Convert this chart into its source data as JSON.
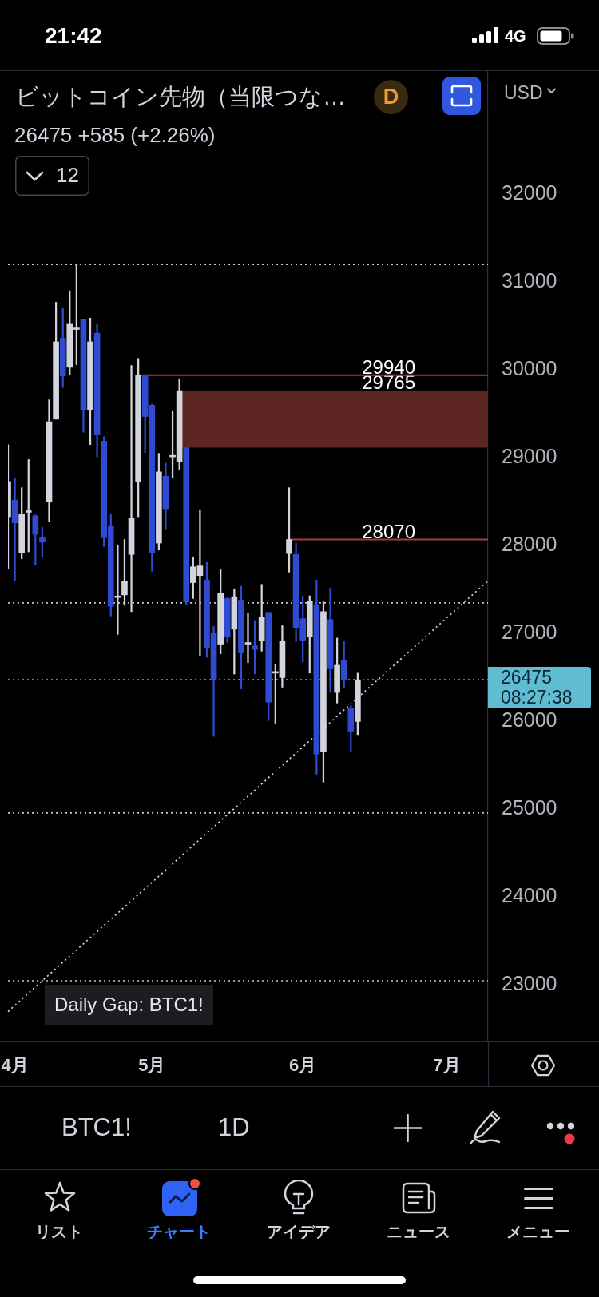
{
  "chart_data": {
    "type": "candlestick",
    "title": "ビットコイン先物（当限つな…",
    "subtitle": "26475 +585 (+2.26%)",
    "annotations": [
      "21:42",
      "4G",
      "D",
      "USD",
      "12",
      "08:27:38",
      "Daily Gap: BTC1!",
      "BTC1!",
      "1D",
      "リスト",
      "チャート",
      "アイデア",
      "ニュース",
      "メニュー"
    ],
    "categories": [
      null,
      "4月",
      null,
      null,
      null,
      null,
      null,
      null,
      null,
      null,
      null,
      null,
      null,
      null,
      null,
      null,
      null,
      null,
      null,
      null,
      null,
      "5月",
      null,
      null,
      null,
      null,
      null,
      null,
      null,
      null,
      null,
      null,
      null,
      null,
      null,
      null,
      null,
      null,
      null,
      null,
      null,
      null,
      null,
      "6月",
      null,
      null,
      null,
      null,
      null,
      null,
      null,
      null,
      null,
      null,
      null,
      null,
      null,
      null,
      null,
      null,
      null,
      null,
      null,
      null,
      "7月",
      null,
      null,
      null,
      null,
      null,
      null
    ],
    "ohlc": [
      [
        28330,
        29150,
        27740,
        28730
      ],
      [
        28520,
        28770,
        27600,
        28260
      ],
      [
        27920,
        28660,
        27850,
        28360
      ],
      [
        28380,
        28980,
        27930,
        28380
      ],
      [
        28340,
        28350,
        27780,
        28130
      ],
      [
        28100,
        28210,
        27870,
        28040
      ],
      [
        28500,
        29660,
        28270,
        29410
      ],
      [
        29440,
        30770,
        29440,
        30320
      ],
      [
        30360,
        30700,
        29800,
        29930
      ],
      [
        30030,
        30900,
        29950,
        30520
      ],
      [
        30460,
        31190,
        30060,
        30460
      ],
      [
        30580,
        30580,
        29290,
        29550
      ],
      [
        29550,
        30590,
        29150,
        30320
      ],
      [
        30420,
        30520,
        29010,
        29260
      ],
      [
        29190,
        29240,
        27990,
        28090
      ],
      [
        28230,
        28360,
        27200,
        27310
      ],
      [
        27410,
        28010,
        26990,
        27410
      ],
      [
        27440,
        28070,
        27320,
        27600
      ],
      [
        27900,
        30050,
        27250,
        28310
      ],
      [
        28730,
        30130,
        28330,
        29940
      ],
      [
        29930,
        29940,
        29060,
        29470
      ],
      [
        29600,
        29610,
        27710,
        27920
      ],
      [
        28030,
        29050,
        27950,
        28840
      ],
      [
        28790,
        28940,
        28190,
        28420
      ],
      [
        29010,
        29530,
        28770,
        29010
      ],
      [
        28950,
        29900,
        28860,
        29765
      ],
      [
        29115,
        29115,
        27330,
        27360
      ],
      [
        27580,
        27870,
        27400,
        27760
      ],
      [
        27660,
        28410,
        26750,
        27770
      ],
      [
        27610,
        27810,
        26730,
        26840
      ],
      [
        27000,
        27080,
        25830,
        26480
      ],
      [
        26880,
        27730,
        26770,
        27460
      ],
      [
        27400,
        27410,
        26900,
        26960
      ],
      [
        27050,
        27510,
        26540,
        27420
      ],
      [
        27380,
        27540,
        26370,
        26780
      ],
      [
        26880,
        27230,
        26670,
        26880
      ],
      [
        26860,
        27150,
        26540,
        26820
      ],
      [
        26920,
        27560,
        26800,
        27190
      ],
      [
        27240,
        27240,
        26010,
        26220
      ],
      [
        26550,
        26650,
        25980,
        26550
      ],
      [
        26500,
        27090,
        26390,
        26910
      ],
      [
        27910,
        28660,
        27700,
        28070
      ],
      [
        27900,
        28030,
        26910,
        27070
      ],
      [
        27170,
        27430,
        26680,
        26920
      ],
      [
        26960,
        27430,
        26550,
        27370
      ],
      [
        27330,
        27610,
        25400,
        25630
      ],
      [
        25660,
        27360,
        25310,
        27250
      ],
      [
        27160,
        27520,
        26330,
        26600
      ],
      [
        26330,
        26950,
        26210,
        26640
      ],
      [
        26700,
        26910,
        26380,
        26470
      ],
      [
        26150,
        26180,
        25660,
        25890
      ],
      [
        26000,
        26550,
        25850,
        26475
      ],
      null,
      null,
      null,
      null,
      null,
      null,
      null,
      null,
      null,
      null,
      null,
      null,
      null,
      null,
      null,
      null,
      null,
      null,
      null
    ],
    "colors": [
      "#d1d4dc",
      "#2f4bd1",
      "#d1d4dc",
      "#d1d4dc",
      "#2f4bd1",
      "#2f4bd1",
      "#d1d4dc",
      "#d1d4dc",
      "#2f4bd1",
      "#d1d4dc",
      "#d1d4dc",
      "#2f4bd1",
      "#d1d4dc",
      "#2f4bd1",
      "#2f4bd1",
      "#2f4bd1",
      "#d1d4dc",
      "#d1d4dc",
      "#d1d4dc",
      "#d1d4dc",
      "#2f4bd1",
      "#2f4bd1",
      "#d1d4dc",
      "#2f4bd1",
      "#d1d4dc",
      "#d1d4dc",
      "#2f4bd1",
      "#d1d4dc",
      "#d1d4dc",
      "#2f4bd1",
      "#2f4bd1",
      "#d1d4dc",
      "#2f4bd1",
      "#d1d4dc",
      "#2f4bd1",
      "#d1d4dc",
      "#2f4bd1",
      "#d1d4dc",
      "#2f4bd1",
      "#d1d4dc",
      "#d1d4dc",
      "#d1d4dc",
      "#2f4bd1",
      "#2f4bd1",
      "#d1d4dc",
      "#2f4bd1",
      "#d1d4dc",
      "#2f4bd1",
      "#d1d4dc",
      "#2f4bd1",
      "#2f4bd1",
      "#d1d4dc",
      null,
      null,
      null,
      null,
      null,
      null,
      null,
      null,
      null,
      null,
      null,
      null,
      null,
      null,
      null,
      null,
      null,
      null,
      null
    ],
    "series": [
      {
        "type": "line",
        "color": "#d8d8d8",
        "line_style": "dotted",
        "values": [
          22700,
          null,
          null,
          null,
          null,
          null,
          null,
          null,
          null,
          null,
          null,
          null,
          null,
          null,
          null,
          null,
          null,
          null,
          null,
          null,
          null,
          null,
          null,
          null,
          null,
          null,
          null,
          null,
          null,
          null,
          null,
          null,
          null,
          null,
          null,
          null,
          null,
          null,
          null,
          null,
          null,
          null,
          null,
          null,
          null,
          null,
          null,
          null,
          null,
          null,
          null,
          null,
          null,
          null,
          null,
          null,
          null,
          null,
          null,
          null,
          null,
          null,
          null,
          null,
          null,
          null,
          null,
          null,
          null,
          null,
          27600
        ]
      }
    ],
    "marker": "none",
    "ylim": [
      22360,
      33400
    ],
    "yticks": [
      23000,
      24000,
      25000,
      26000,
      27000,
      28000,
      29000,
      30000,
      31000,
      32000
    ],
    "ref_lines": [
      {
        "axis": "y",
        "value": 31200,
        "color": "#c8c8c8",
        "line_style": "dotted"
      },
      {
        "axis": "y",
        "value": 29940,
        "label": "29940",
        "color": "#a23f37",
        "line_style": "solid"
      },
      {
        "axis": "y",
        "value": 28070,
        "label": "28070",
        "color": "#a23f37",
        "line_style": "solid"
      },
      {
        "axis": "y",
        "value": 27350,
        "color": "#c8c8c8",
        "line_style": "dotted"
      },
      {
        "axis": "y",
        "value": 26475,
        "label": "26475",
        "color": "#5fbcd3",
        "line_style": "dotted"
      },
      {
        "axis": "y",
        "value": 24960,
        "color": "#c8c8c8",
        "line_style": "dotted"
      },
      {
        "axis": "y",
        "value": 23050,
        "color": "#c8c8c8",
        "line_style": "dotted"
      }
    ],
    "bands": [
      {
        "axis": "y",
        "from": 29115,
        "to": 29765,
        "label": "29765",
        "color": "#5e2525"
      }
    ]
  }
}
